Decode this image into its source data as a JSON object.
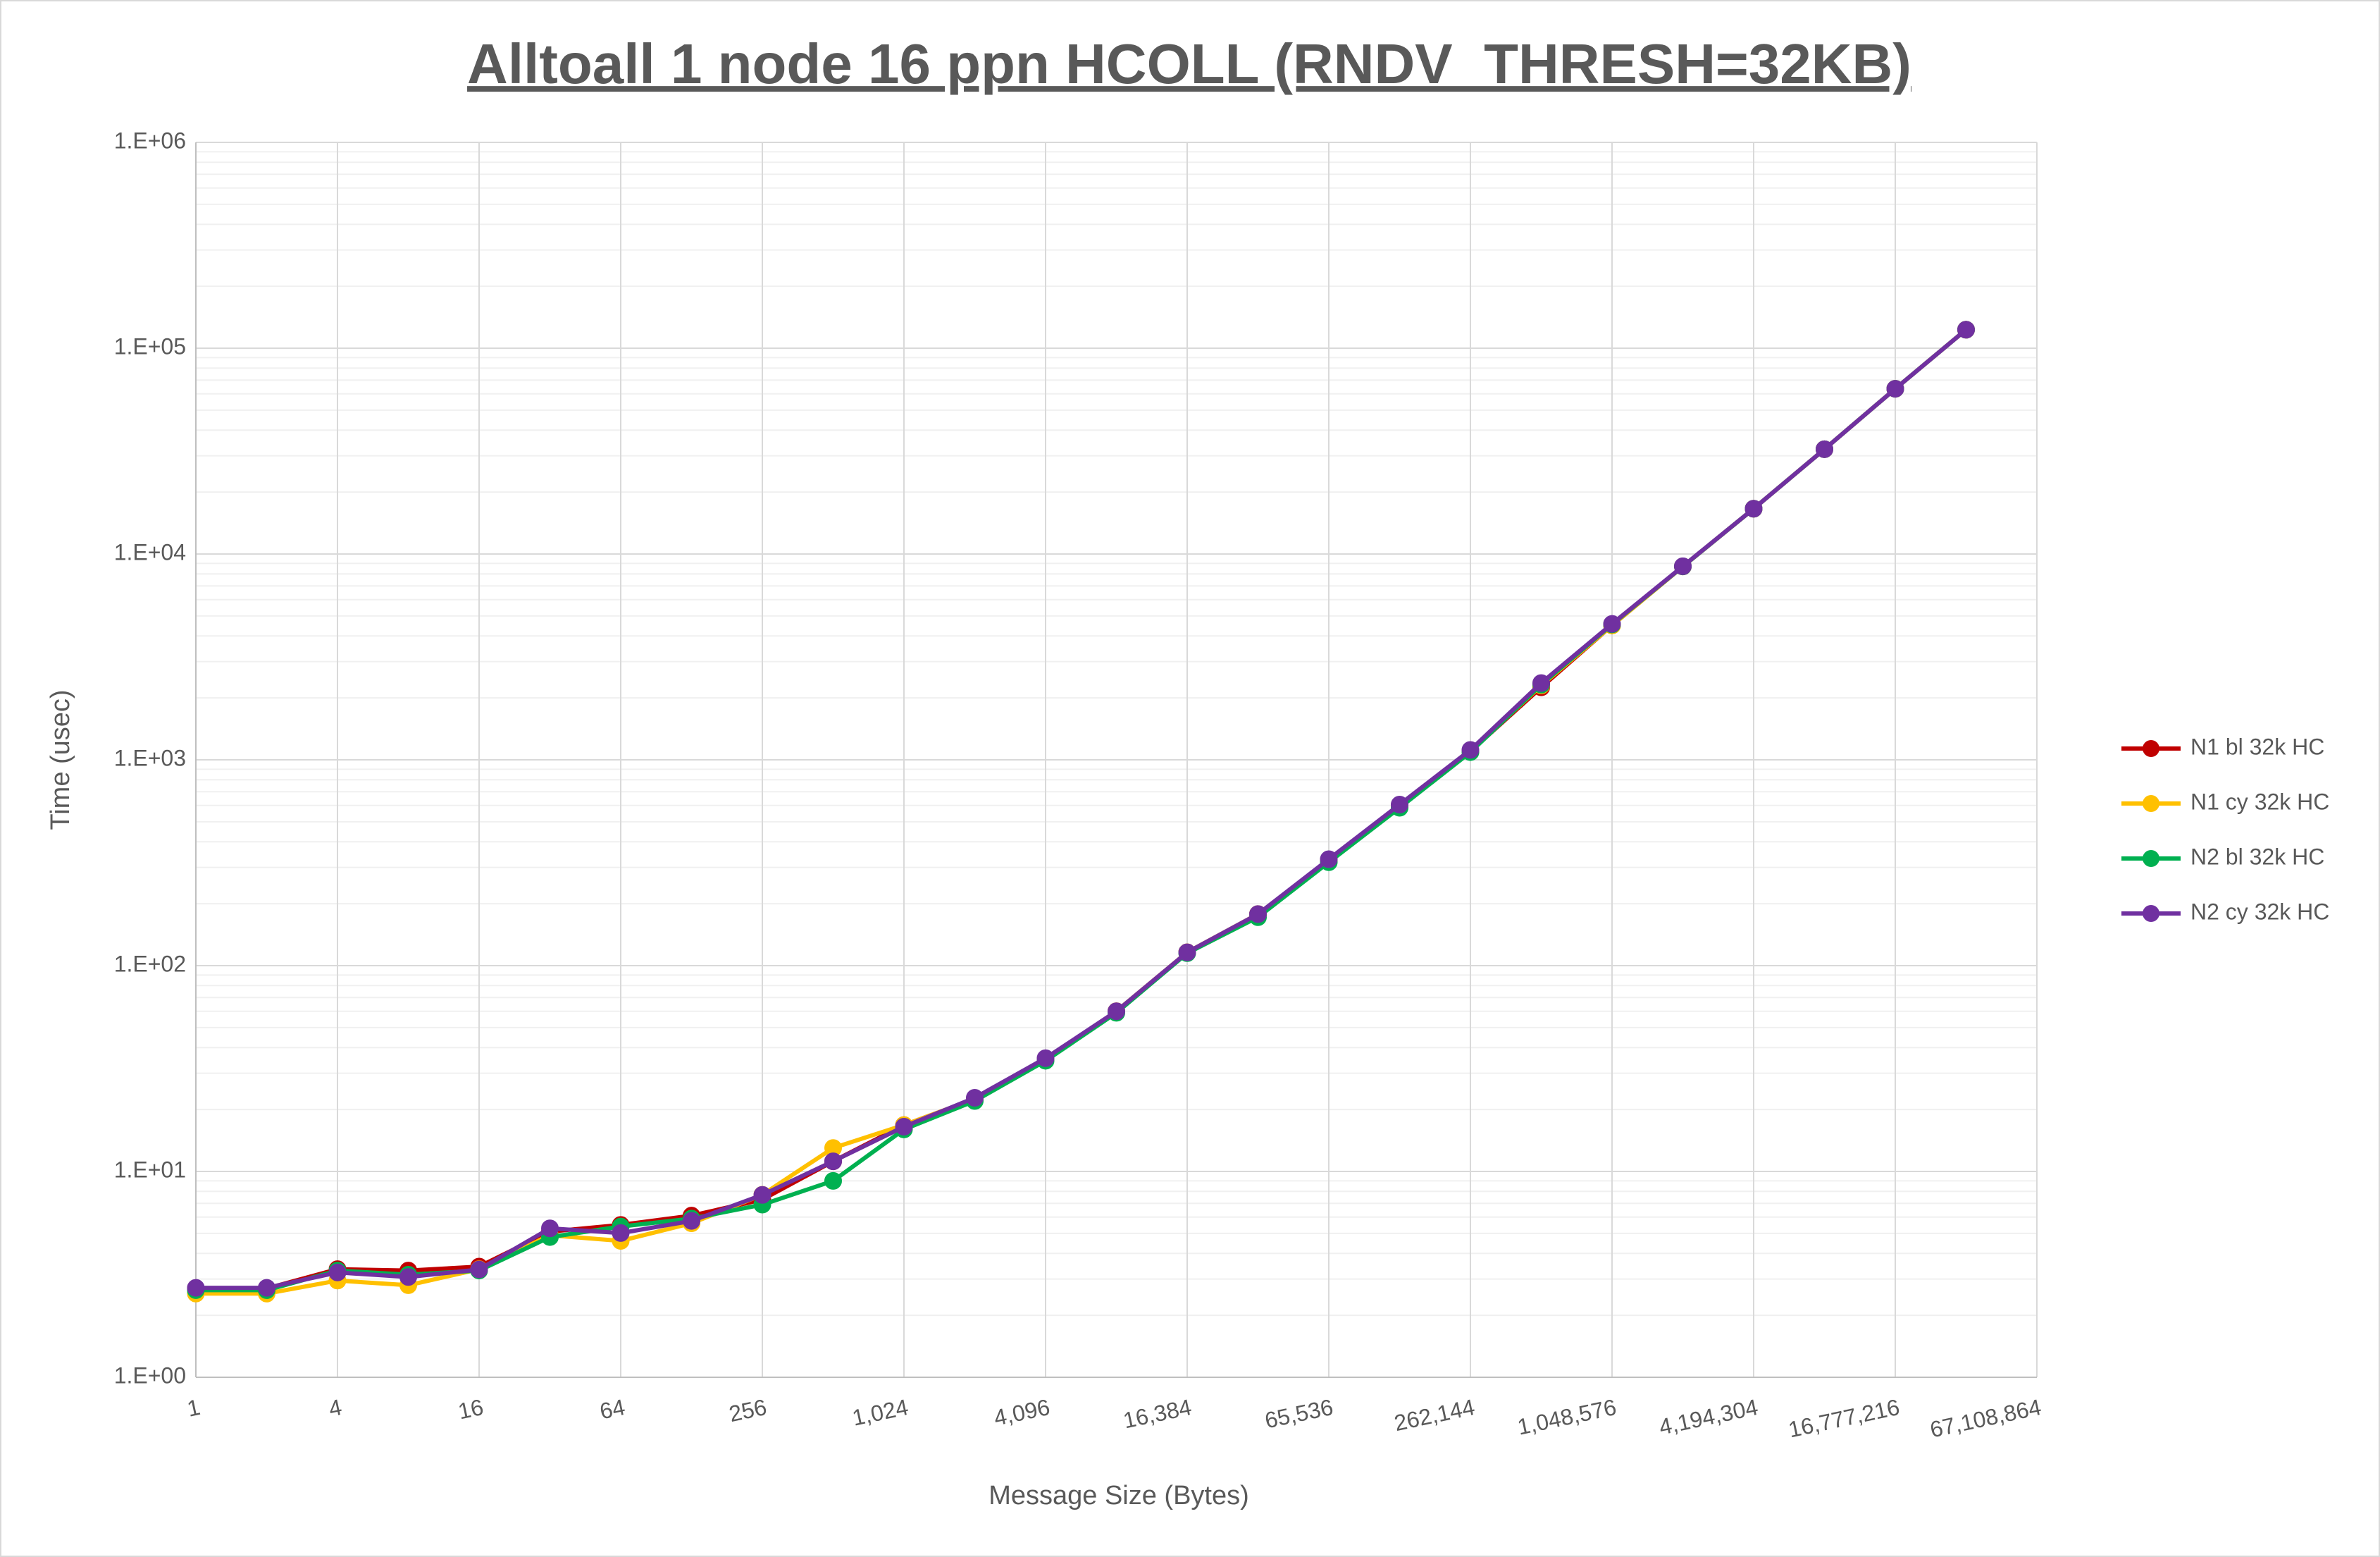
{
  "chart_data": {
    "type": "line",
    "title": "Alltoall 1 node 16 ppn HCOLL (RNDV_THRESH=32KB)",
    "x_label": "Message Size (Bytes)",
    "y_label": "Time (usec)",
    "x_log_base": 2,
    "y_log_base": 10,
    "grid": true,
    "legend": "right",
    "x": [
      1,
      2,
      4,
      8,
      16,
      32,
      64,
      128,
      256,
      512,
      1024,
      2048,
      4096,
      8192,
      16384,
      32768,
      65536,
      131072,
      262144,
      524288,
      1048576,
      2097152,
      4194304,
      8388608,
      16777216,
      33554432
    ],
    "xlim": [
      1,
      67108864
    ],
    "xticks": [
      1,
      4,
      16,
      64,
      256,
      {
        "value": 1024,
        "label": "1,024"
      },
      {
        "value": 4096,
        "label": "4,096"
      },
      {
        "value": 16384,
        "label": "16,384"
      },
      {
        "value": 65536,
        "label": "65,536"
      },
      {
        "value": 262144,
        "label": "262,144"
      },
      {
        "value": 1048576,
        "label": "1,048,576"
      },
      {
        "value": 4194304,
        "label": "4,194,304"
      },
      {
        "value": 16777216,
        "label": "16,777,216"
      },
      {
        "value": 67108864,
        "label": "67,108,864"
      }
    ],
    "ylim": [
      1,
      1000000
    ],
    "yticks": [
      {
        "value": 1,
        "label": "1.E+00"
      },
      {
        "value": 10,
        "label": "1.E+01"
      },
      {
        "value": 100,
        "label": "1.E+02"
      },
      {
        "value": 1000,
        "label": "1.E+03"
      },
      {
        "value": 10000,
        "label": "1.E+04"
      },
      {
        "value": 100000,
        "label": "1.E+05"
      },
      {
        "value": 1000000,
        "label": "1.E+06"
      }
    ],
    "series": [
      {
        "name": "N1 bl 32k HC",
        "color": "#c00000",
        "values": [
          2.7,
          2.7,
          3.35,
          3.3,
          3.45,
          5.1,
          5.5,
          6.1,
          7.3,
          11.2,
          16.8,
          22.5,
          35,
          60,
          116,
          178,
          325,
          600,
          1100,
          2250,
          4500,
          8700,
          16600,
          32300,
          63500,
          123000
        ]
      },
      {
        "name": "N1 cy 32k HC",
        "color": "#ffc000",
        "values": [
          2.55,
          2.55,
          2.95,
          2.8,
          3.35,
          4.9,
          4.6,
          5.6,
          7.7,
          13,
          16.8,
          22.5,
          35,
          60,
          116,
          178,
          325,
          600,
          1100,
          2300,
          4500,
          8700,
          16600,
          32300,
          63500,
          123000
        ]
      },
      {
        "name": "N2 bl 32k HC",
        "color": "#00b050",
        "values": [
          2.65,
          2.65,
          3.3,
          3.15,
          3.3,
          4.8,
          5.4,
          5.9,
          6.9,
          9,
          16,
          22,
          34.5,
          59,
          115,
          172,
          318,
          585,
          1090,
          2320,
          4550,
          8700,
          16600,
          32300,
          63500,
          123000
        ]
      },
      {
        "name": "N2 cy 32k HC",
        "color": "#7030a0",
        "values": [
          2.72,
          2.72,
          3.23,
          3.07,
          3.34,
          5.29,
          5.02,
          5.75,
          7.69,
          11.2,
          16.5,
          22.8,
          35.5,
          60,
          116,
          178,
          329,
          606,
          1117,
          2360,
          4575,
          8720,
          16600,
          32300,
          63500,
          123000
        ]
      }
    ]
  }
}
